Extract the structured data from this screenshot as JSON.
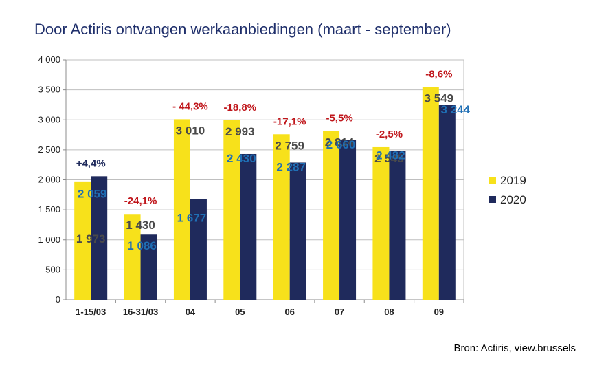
{
  "title": "Door Actiris ontvangen werkaanbiedingen (maart - september)",
  "source": "Bron: Actiris, view.brussels",
  "chart_data": {
    "type": "bar",
    "categories": [
      "1-15/03",
      "16-31/03",
      "04",
      "05",
      "06",
      "07",
      "08",
      "09"
    ],
    "series": [
      {
        "name": "2019",
        "color": "#f7e11b",
        "label_color": "#4a4a4a",
        "values": [
          1973,
          1430,
          3010,
          2993,
          2759,
          2814,
          2545,
          3549
        ],
        "labels": [
          "1 973",
          "1 430",
          "3 010",
          "2 993",
          "2 759",
          "2 814",
          "2 545",
          "3 549"
        ]
      },
      {
        "name": "2020",
        "color": "#1f2a5c",
        "label_color": "#1f6fb5",
        "values": [
          2059,
          1086,
          1677,
          2430,
          2287,
          2660,
          2482,
          3244
        ],
        "labels": [
          "2 059",
          "1 086",
          "1 677",
          "2 430",
          "2 287",
          "2 660",
          "2 482",
          "3 244"
        ]
      }
    ],
    "changes": [
      "+4,4%",
      "-24,1%",
      "- 44,3%",
      "-18,8%",
      "-17,1%",
      "-5,5%",
      "-2,5%",
      "-8,6%"
    ],
    "change_colors": [
      "#1f2a5c",
      "#c0161b",
      "#c0161b",
      "#c0161b",
      "#c0161b",
      "#c0161b",
      "#c0161b",
      "#c0161b"
    ],
    "yticks": [
      "0",
      "500",
      "1 000",
      "1 500",
      "2 000",
      "2 500",
      "3 000",
      "3 500",
      "4 000"
    ],
    "ylim": [
      0,
      4000
    ],
    "grid": true,
    "legend": "right"
  }
}
